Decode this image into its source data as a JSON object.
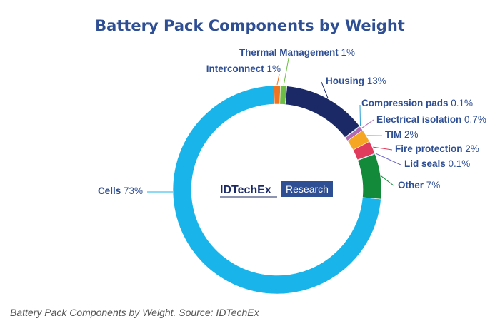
{
  "chart_data": {
    "type": "pie",
    "title": "Battery Pack Components by Weight",
    "unit": "%",
    "slices": [
      {
        "key": "cells",
        "name": "Cells",
        "value_label": "73%",
        "value": 73,
        "color": "#18b4ea",
        "label_color": "#2f4f94"
      },
      {
        "key": "interconnect",
        "name": "Interconnect",
        "value_label": "1%",
        "value": 1,
        "color": "#ee7522",
        "label_color": "#2f4f94"
      },
      {
        "key": "thermal",
        "name": "Thermal Management",
        "value_label": "1%",
        "value": 1,
        "color": "#6cbc45",
        "label_color": "#2f4f94"
      },
      {
        "key": "housing",
        "name": "Housing",
        "value_label": "13%",
        "value": 13,
        "color": "#1b2a66",
        "label_color": "#2f4f94"
      },
      {
        "key": "compression",
        "name": "Compression pads",
        "value_label": "0.1%",
        "value": 0.1,
        "color": "#2a9fd6",
        "label_color": "#2f4f94"
      },
      {
        "key": "electrical",
        "name": "Electrical isolation",
        "value_label": "0.7%",
        "value": 0.7,
        "color": "#b06ab3",
        "label_color": "#2f4f94"
      },
      {
        "key": "tim",
        "name": "TIM",
        "value_label": "2%",
        "value": 2,
        "color": "#f5a623",
        "label_color": "#2f4f94"
      },
      {
        "key": "fire",
        "name": "Fire protection",
        "value_label": "2%",
        "value": 2,
        "color": "#e03a5c",
        "label_color": "#2f4f94"
      },
      {
        "key": "lidseals",
        "name": "Lid seals",
        "value_label": "0.1%",
        "value": 0.1,
        "color": "#6a64c8",
        "label_color": "#2f4f94"
      },
      {
        "key": "other",
        "name": "Other",
        "value_label": "7%",
        "value": 7,
        "color": "#128a3a",
        "label_color": "#2f4f94"
      }
    ]
  },
  "logo": {
    "brand": "IDTechEx",
    "tag": "Research",
    "brand_color": "#1b2a66",
    "tag_bg": "#2f4f94"
  },
  "caption": "Battery Pack Components by Weight. Source: IDTechEx"
}
